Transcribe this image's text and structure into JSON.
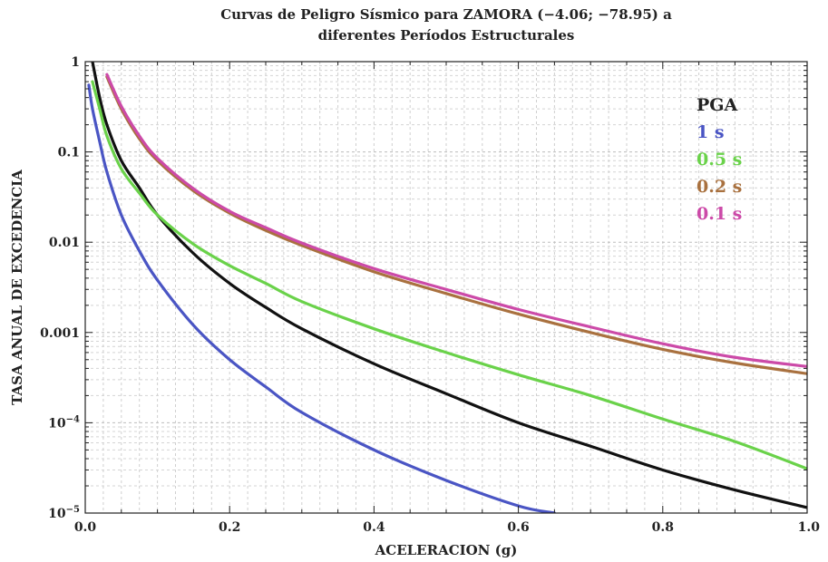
{
  "chart_data": {
    "type": "line",
    "title_line1": "Curvas de Peligro Sísmico para ZAMORA (−4.06; −78.95) a",
    "title_line2": "diferentes Períodos Estructurales",
    "xlabel": "ACELERACION (g)",
    "ylabel": "TASA ANUAL DE EXCEDENCIA",
    "y_scale": "log",
    "xlim": [
      0,
      1.0
    ],
    "ylim": [
      1e-05,
      1
    ],
    "grid": true,
    "legend_position": "top-right",
    "x_ticks": [
      {
        "value": 0.0,
        "label": "0.0"
      },
      {
        "value": 0.2,
        "label": "0.2"
      },
      {
        "value": 0.4,
        "label": "0.4"
      },
      {
        "value": 0.6,
        "label": "0.6"
      },
      {
        "value": 0.8,
        "label": "0.8"
      },
      {
        "value": 1.0,
        "label": "1.0"
      }
    ],
    "y_ticks": [
      {
        "value": 1,
        "label": "1",
        "sup": ""
      },
      {
        "value": 0.1,
        "label": "0.1",
        "sup": ""
      },
      {
        "value": 0.01,
        "label": "0.01",
        "sup": ""
      },
      {
        "value": 0.001,
        "label": "0.001",
        "sup": ""
      },
      {
        "value": 0.0001,
        "label": "10",
        "sup": "−4"
      },
      {
        "value": 1e-05,
        "label": "10",
        "sup": "−5"
      }
    ],
    "series": [
      {
        "name": "PGA",
        "color": "#111111",
        "x": [
          0.01,
          0.02,
          0.03,
          0.05,
          0.075,
          0.1,
          0.15,
          0.2,
          0.25,
          0.3,
          0.4,
          0.5,
          0.6,
          0.7,
          0.8,
          0.9,
          1.0
        ],
        "y": [
          1.0,
          0.4,
          0.2,
          0.08,
          0.04,
          0.02,
          0.0075,
          0.0035,
          0.0019,
          0.0011,
          0.00045,
          0.00021,
          0.0001,
          5.5e-05,
          3e-05,
          1.8e-05,
          1.15e-05
        ]
      },
      {
        "name": "1 s",
        "color": "#4a55c4",
        "x": [
          0.005,
          0.01,
          0.02,
          0.03,
          0.05,
          0.075,
          0.1,
          0.15,
          0.2,
          0.25,
          0.3,
          0.4,
          0.5,
          0.6,
          0.65
        ],
        "y": [
          0.55,
          0.3,
          0.13,
          0.06,
          0.02,
          0.008,
          0.0038,
          0.0012,
          0.0005,
          0.00025,
          0.00013,
          5e-05,
          2.3e-05,
          1.2e-05,
          1e-05
        ]
      },
      {
        "name": "0.5 s",
        "color": "#6ad24a",
        "x": [
          0.01,
          0.02,
          0.03,
          0.05,
          0.075,
          0.1,
          0.15,
          0.2,
          0.25,
          0.3,
          0.4,
          0.5,
          0.6,
          0.7,
          0.8,
          0.9,
          1.0
        ],
        "y": [
          0.6,
          0.3,
          0.15,
          0.065,
          0.035,
          0.02,
          0.0095,
          0.0055,
          0.0035,
          0.0022,
          0.0011,
          0.0006,
          0.00034,
          0.0002,
          0.00011,
          6.2e-05,
          3.1e-05
        ]
      },
      {
        "name": "0.2 s",
        "color": "#a9713f",
        "x": [
          0.03,
          0.05,
          0.075,
          0.1,
          0.15,
          0.2,
          0.25,
          0.3,
          0.4,
          0.5,
          0.6,
          0.7,
          0.8,
          0.9,
          1.0
        ],
        "y": [
          0.68,
          0.3,
          0.14,
          0.08,
          0.037,
          0.021,
          0.0135,
          0.0092,
          0.0047,
          0.0027,
          0.0016,
          0.001,
          0.00065,
          0.00046,
          0.00035
        ]
      },
      {
        "name": "0.1 s",
        "color": "#cc4aa8",
        "x": [
          0.03,
          0.05,
          0.075,
          0.1,
          0.15,
          0.2,
          0.25,
          0.3,
          0.4,
          0.5,
          0.6,
          0.7,
          0.8,
          0.9,
          1.0
        ],
        "y": [
          0.72,
          0.32,
          0.15,
          0.085,
          0.039,
          0.022,
          0.0145,
          0.0098,
          0.0051,
          0.003,
          0.0018,
          0.00115,
          0.00075,
          0.00053,
          0.00042
        ]
      }
    ]
  }
}
